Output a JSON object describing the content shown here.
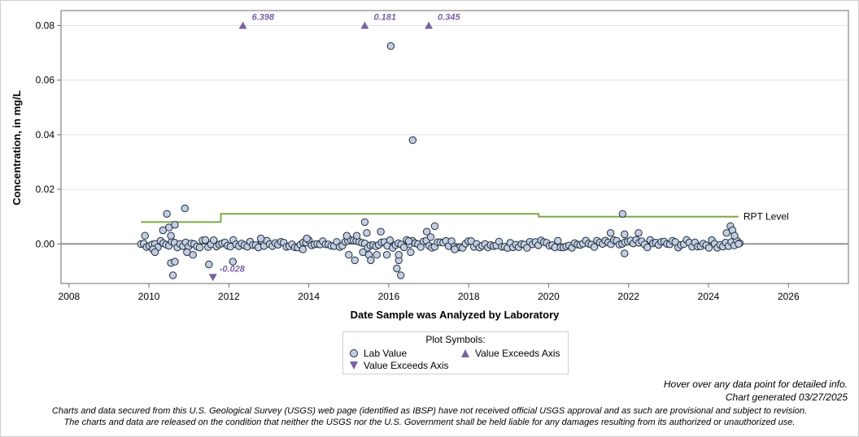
{
  "chart_data": {
    "type": "scatter",
    "xlabel": "Date Sample was Analyzed by Laboratory",
    "ylabel": "Concentration, in mg/L",
    "xlim": [
      2007.8,
      2027.5
    ],
    "ylim": [
      -0.0145,
      0.0855
    ],
    "x_ticks": [
      2008,
      2010,
      2012,
      2014,
      2016,
      2018,
      2020,
      2022,
      2024,
      2026
    ],
    "y_ticks": [
      0.0,
      0.02,
      0.04,
      0.06,
      0.08
    ],
    "y_tick_labels": [
      "0.00",
      "0.02",
      "0.04",
      "0.06",
      "0.08"
    ],
    "grid": "horizontal",
    "reference_line": {
      "y": 0
    },
    "rpt_level": {
      "label": "RPT Level",
      "color": "#7fa84a",
      "steps": [
        [
          2009.8,
          0.008
        ],
        [
          2011.8,
          0.008
        ],
        [
          2011.8,
          0.011
        ],
        [
          2019.75,
          0.011
        ],
        [
          2019.75,
          0.01
        ],
        [
          2024.75,
          0.01
        ]
      ]
    },
    "exceeds_above": [
      {
        "x": 2012.35,
        "label": "6.398"
      },
      {
        "x": 2015.4,
        "label": "0.181"
      },
      {
        "x": 2017.0,
        "label": "0.345"
      }
    ],
    "exceeds_below": [
      {
        "x": 2011.6,
        "label": "-0.028"
      }
    ],
    "lab_values_notable": [
      {
        "x": 2009.9,
        "y": 0.003
      },
      {
        "x": 2010.45,
        "y": 0.011
      },
      {
        "x": 2010.5,
        "y": 0.006
      },
      {
        "x": 2010.55,
        "y": 0.003
      },
      {
        "x": 2010.65,
        "y": 0.007
      },
      {
        "x": 2010.35,
        "y": 0.005
      },
      {
        "x": 2010.55,
        "y": -0.007
      },
      {
        "x": 2010.6,
        "y": -0.0115
      },
      {
        "x": 2010.65,
        "y": -0.0065
      },
      {
        "x": 2010.1,
        "y": -0.002
      },
      {
        "x": 2010.15,
        "y": -0.003
      },
      {
        "x": 2010.9,
        "y": 0.013
      },
      {
        "x": 2010.95,
        "y": -0.003
      },
      {
        "x": 2011.1,
        "y": -0.004
      },
      {
        "x": 2011.5,
        "y": -0.0075
      },
      {
        "x": 2012.1,
        "y": -0.0065
      },
      {
        "x": 2012.8,
        "y": 0.002
      },
      {
        "x": 2013.95,
        "y": 0.002
      },
      {
        "x": 2013.85,
        "y": -0.002
      },
      {
        "x": 2014.95,
        "y": 0.003
      },
      {
        "x": 2015.0,
        "y": -0.004
      },
      {
        "x": 2015.15,
        "y": -0.006
      },
      {
        "x": 2015.2,
        "y": 0.003
      },
      {
        "x": 2015.35,
        "y": -0.003
      },
      {
        "x": 2015.4,
        "y": 0.008
      },
      {
        "x": 2015.45,
        "y": 0.004
      },
      {
        "x": 2015.5,
        "y": -0.004
      },
      {
        "x": 2015.55,
        "y": -0.006
      },
      {
        "x": 2015.7,
        "y": -0.004
      },
      {
        "x": 2015.8,
        "y": 0.0045
      },
      {
        "x": 2015.95,
        "y": -0.004
      },
      {
        "x": 2016.05,
        "y": 0.0725
      },
      {
        "x": 2016.2,
        "y": -0.009
      },
      {
        "x": 2016.25,
        "y": -0.006
      },
      {
        "x": 2016.3,
        "y": -0.0115
      },
      {
        "x": 2016.25,
        "y": -0.004
      },
      {
        "x": 2016.5,
        "y": 0.001
      },
      {
        "x": 2016.6,
        "y": 0.038
      },
      {
        "x": 2016.55,
        "y": -0.003
      },
      {
        "x": 2016.95,
        "y": 0.0045
      },
      {
        "x": 2017.05,
        "y": 0.0025
      },
      {
        "x": 2017.15,
        "y": 0.0065
      },
      {
        "x": 2017.65,
        "y": -0.002
      },
      {
        "x": 2021.55,
        "y": 0.004
      },
      {
        "x": 2021.85,
        "y": 0.011
      },
      {
        "x": 2021.9,
        "y": 0.0035
      },
      {
        "x": 2021.9,
        "y": -0.0035
      },
      {
        "x": 2022.25,
        "y": 0.004
      },
      {
        "x": 2024.55,
        "y": 0.0065
      },
      {
        "x": 2024.6,
        "y": 0.005
      },
      {
        "x": 2024.65,
        "y": 0.003
      },
      {
        "x": 2024.45,
        "y": 0.004
      },
      {
        "x": 2024.75,
        "y": 0.0
      }
    ],
    "lab_values_baseline_note": "Dense run of near-zero lab values (approx. -0.002 to 0.002 mg/L) between 2009.8 and 2024.8"
  },
  "legend": {
    "title": "Plot Symbols:",
    "lab_value": "Lab Value",
    "exceeds_up": "Value Exceeds Axis",
    "exceeds_down": "Value Exceeds Axis"
  },
  "notes": {
    "hover": "Hover over any data point for detailed info.",
    "generated": "Chart generated 03/27/2025"
  },
  "disclaimer": {
    "line1": "Charts and data secured from this U.S. Geological Survey (USGS) web page (identified as IBSP) have not received official USGS approval and as such are provisional and subject to revision.",
    "line2": "The charts and data are released on the condition that neither the USGS nor the U.S. Government shall be held liable for any damages resulting from its authorized or unauthorized use."
  },
  "colors": {
    "marker_fill": "#c3cfe0",
    "marker_stroke": "#1f2b3e",
    "exceed_marker": "#7b62a3",
    "rpt_line": "#7fa84a"
  }
}
